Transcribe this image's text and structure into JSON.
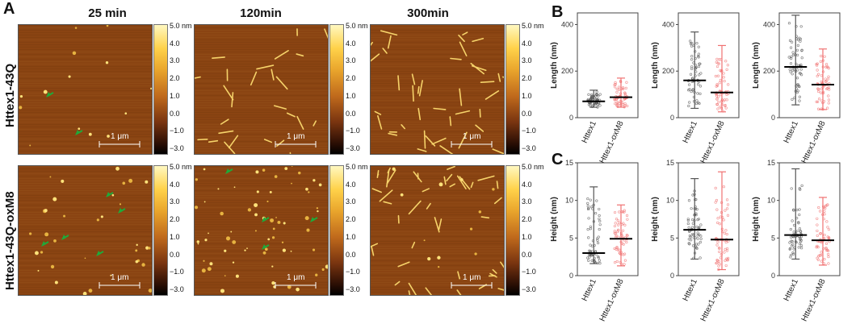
{
  "panel_labels": {
    "a": "A",
    "b": "B",
    "c": "C"
  },
  "columns": [
    "25 min",
    "120min",
    "300min"
  ],
  "rows": [
    "Httex1-43Q",
    "Httex1-43Q-oxM8"
  ],
  "scale_bar_label": "1 μm",
  "colorbar_ticks": [
    "5.0 nm",
    "4.0",
    "3.0",
    "2.0",
    "1.0",
    "0.0",
    "−1.0",
    "−3.0"
  ],
  "colors": {
    "httex1": "#555555",
    "oxm8": "#f07070",
    "arrow": "#1faa3a"
  },
  "chart_data": [
    {
      "type": "scatter",
      "panel": "B",
      "ylabel": "Length (nm)",
      "ylim": [
        0,
        450
      ],
      "yticks": [
        0,
        200,
        400
      ],
      "categories": [
        "Httex1",
        "Httex1-oxM8"
      ],
      "series": [
        {
          "median": 70,
          "min": 45,
          "max": 118
        },
        {
          "median": 88,
          "min": 45,
          "max": 170
        }
      ]
    },
    {
      "type": "scatter",
      "panel": "B",
      "ylabel": "Length (nm)",
      "ylim": [
        0,
        450
      ],
      "yticks": [
        0,
        200,
        400
      ],
      "categories": [
        "Httex1",
        "Httex1-oxM8"
      ],
      "series": [
        {
          "median": 160,
          "min": 40,
          "max": 368
        },
        {
          "median": 108,
          "min": 25,
          "max": 310
        }
      ]
    },
    {
      "type": "scatter",
      "panel": "B",
      "ylabel": "Length (nm)",
      "ylim": [
        0,
        450
      ],
      "yticks": [
        0,
        200,
        400
      ],
      "categories": [
        "Httex1",
        "Httex1-oxM8"
      ],
      "series": [
        {
          "median": 218,
          "min": 55,
          "max": 440
        },
        {
          "median": 142,
          "min": 35,
          "max": 295
        }
      ]
    },
    {
      "type": "scatter",
      "panel": "C",
      "ylabel": "Height (nm)",
      "ylim": [
        0,
        15
      ],
      "yticks": [
        0,
        5,
        10,
        15
      ],
      "categories": [
        "Httex1",
        "Httex1-oxM8"
      ],
      "series": [
        {
          "median": 3.0,
          "min": 1.6,
          "max": 11.8
        },
        {
          "median": 4.9,
          "min": 1.3,
          "max": 9.4
        }
      ]
    },
    {
      "type": "scatter",
      "panel": "C",
      "ylabel": "Height (nm)",
      "ylim": [
        0,
        15
      ],
      "yticks": [
        0,
        5,
        10,
        15
      ],
      "categories": [
        "Httex1",
        "Httex1-oxM8"
      ],
      "series": [
        {
          "median": 6.1,
          "min": 2.2,
          "max": 12.9
        },
        {
          "median": 4.8,
          "min": 0.8,
          "max": 13.8
        }
      ]
    },
    {
      "type": "scatter",
      "panel": "C",
      "ylabel": "Height (nm)",
      "ylim": [
        0,
        15
      ],
      "yticks": [
        0,
        5,
        10,
        15
      ],
      "categories": [
        "Httex1",
        "Httex1-oxM8"
      ],
      "series": [
        {
          "median": 5.4,
          "min": 2.2,
          "max": 14.2
        },
        {
          "median": 4.7,
          "min": 1.4,
          "max": 10.4
        }
      ]
    }
  ]
}
